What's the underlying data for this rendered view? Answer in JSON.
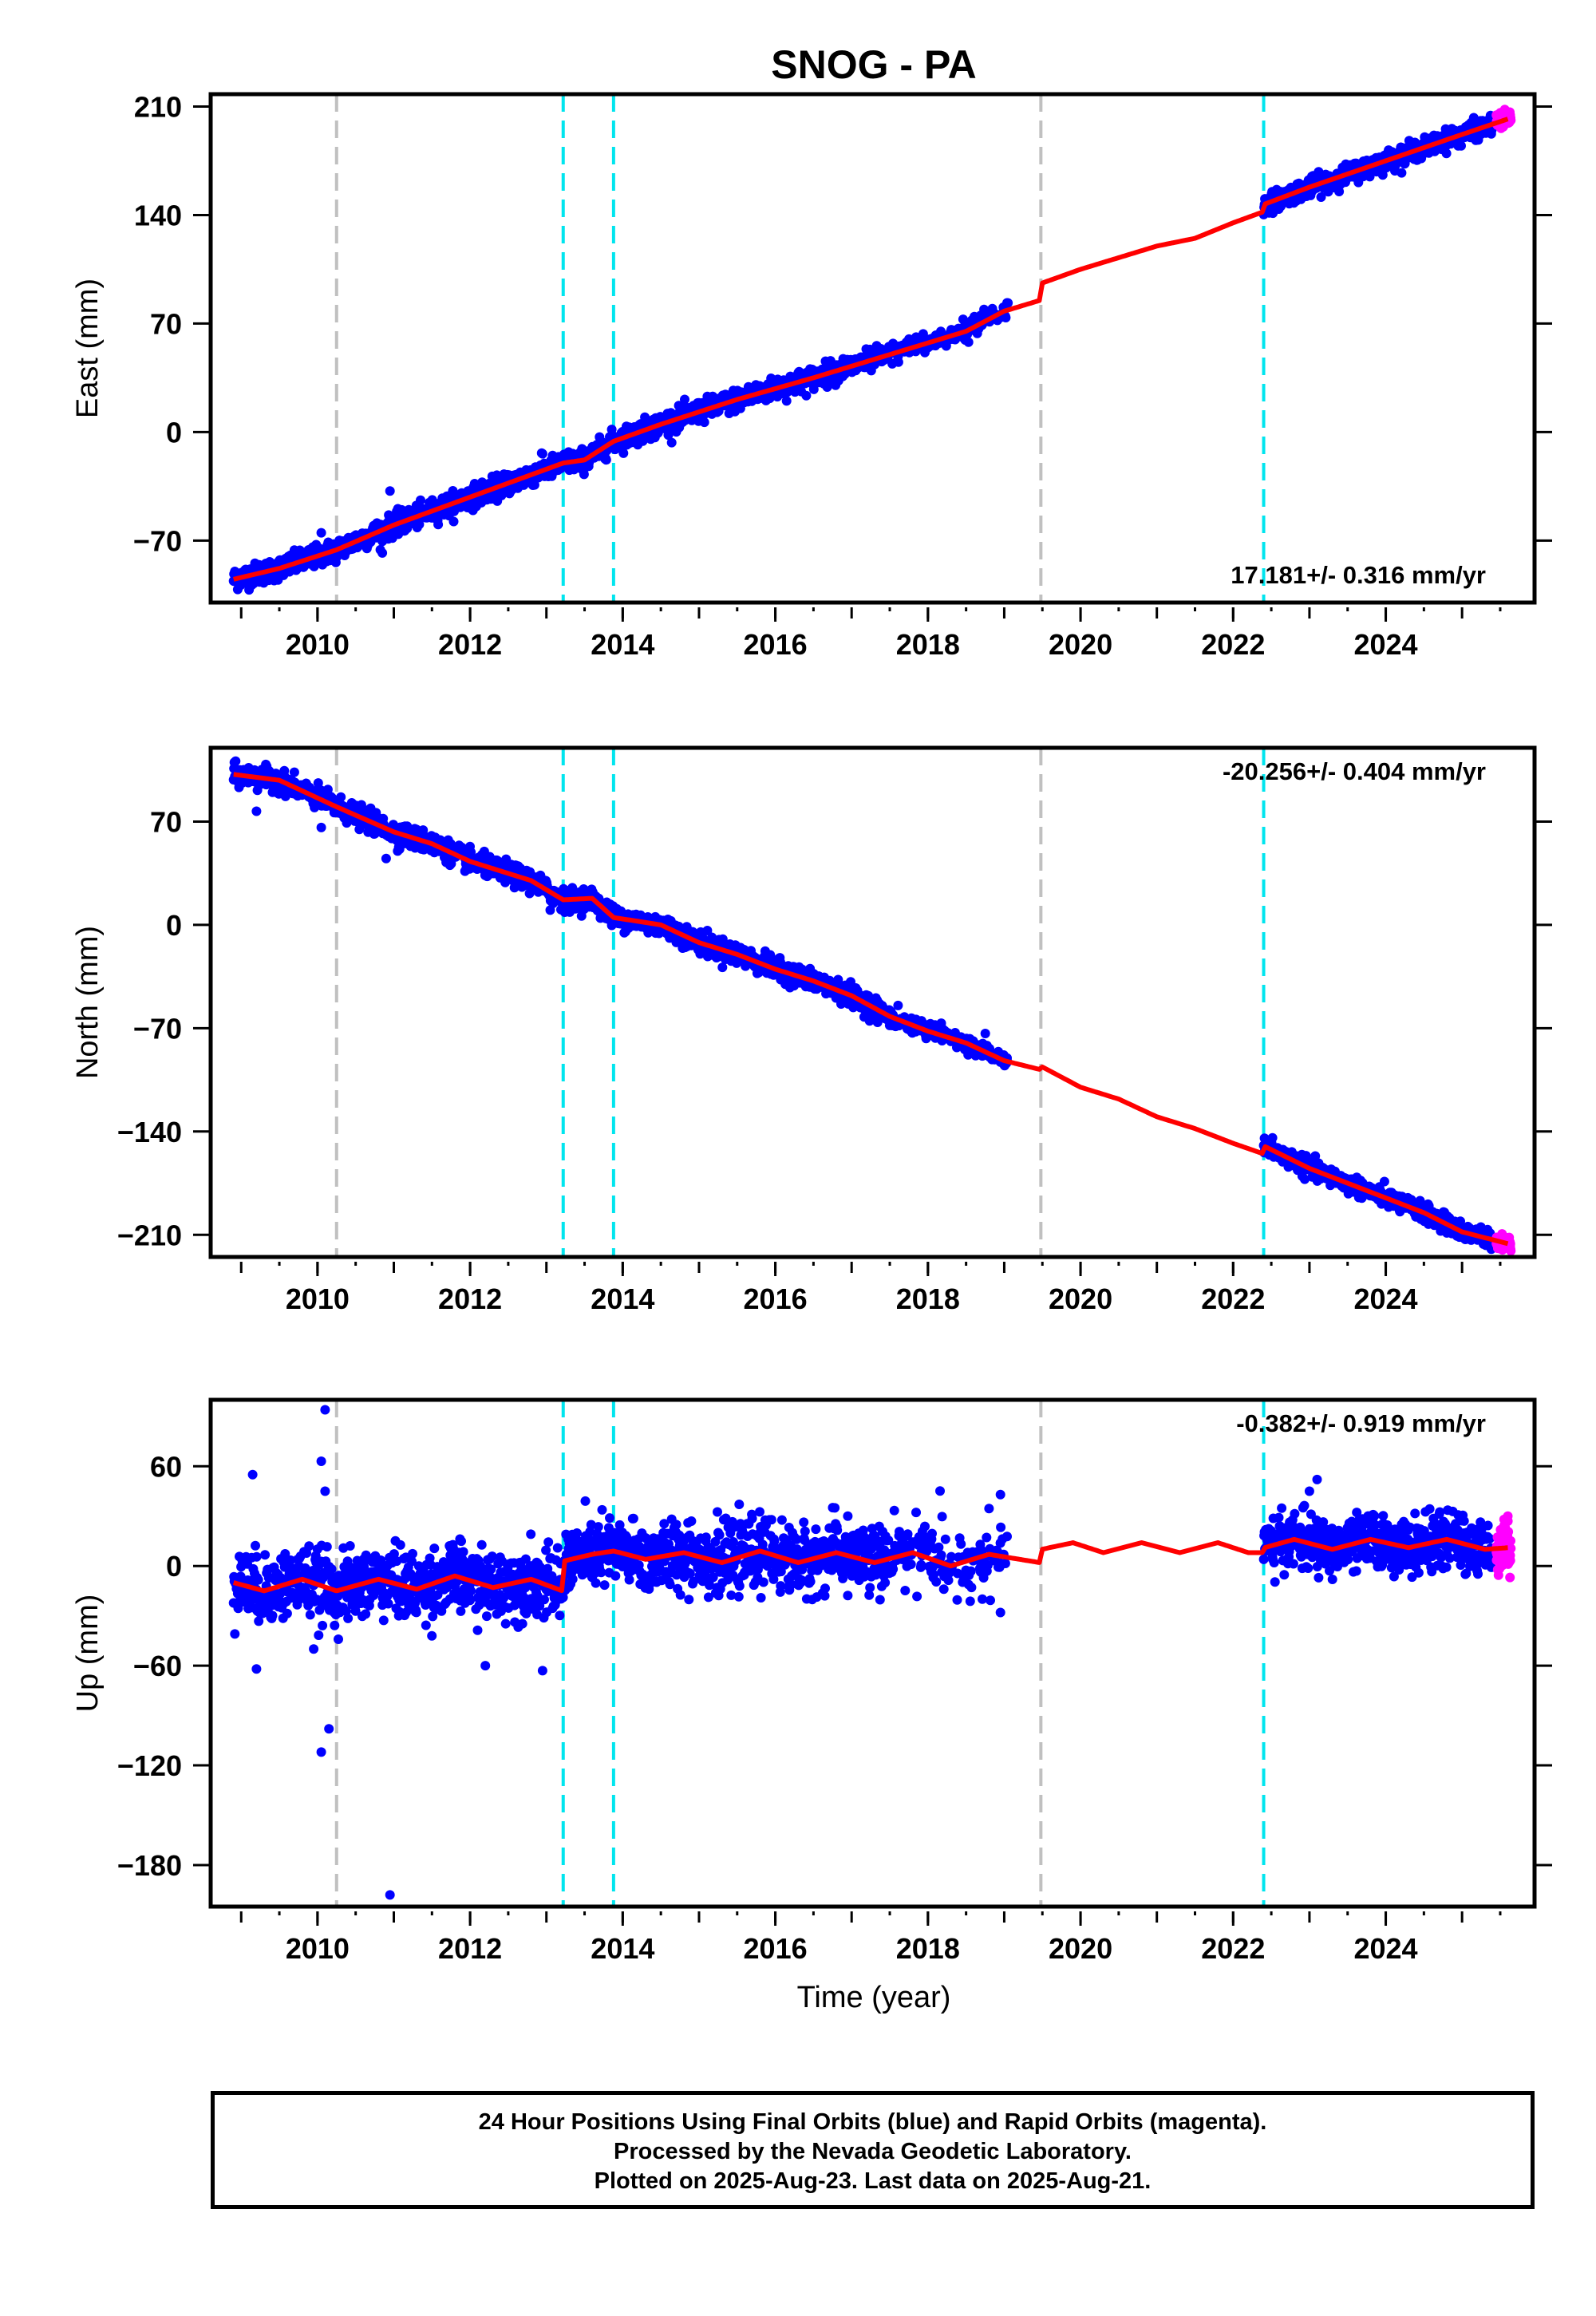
{
  "figure": {
    "title": "SNOG - PA",
    "xlabel": "Time (year)",
    "footer": [
      "24 Hour Positions Using Final Orbits (blue) and Rapid Orbits (magenta).",
      "Processed by the Nevada Geodetic Laboratory.",
      "Plotted on 2025-Aug-23. Last data on 2025-Aug-21."
    ]
  },
  "colors": {
    "final_orbits": "#0000ff",
    "rapid_orbits": "#ff00ff",
    "model": "#ff0000",
    "equipment_change": "#00e5ee",
    "other_event": "#c0c0c0"
  },
  "chart_data": [
    {
      "type": "scatter",
      "ylabel": "East (mm)",
      "xlim": [
        2008.6,
        2025.95
      ],
      "ylim": [
        -110,
        218
      ],
      "yticks": [
        -70,
        0,
        70,
        140,
        210
      ],
      "xticks": [
        2010,
        2012,
        2014,
        2016,
        2018,
        2020,
        2022,
        2024
      ],
      "grid": false,
      "rate_label": "17.181+/- 0.316 mm/yr",
      "rate_position": "bottom-right",
      "event_lines": [
        {
          "x": 2010.25,
          "kind": "other"
        },
        {
          "x": 2013.22,
          "kind": "equipment"
        },
        {
          "x": 2013.88,
          "kind": "equipment"
        },
        {
          "x": 2019.48,
          "kind": "other"
        },
        {
          "x": 2022.4,
          "kind": "equipment"
        }
      ],
      "model_line": {
        "x": [
          2008.9,
          2009.5,
          2010.25,
          2011.0,
          2012.0,
          2013.22,
          2013.5,
          2013.88,
          2014.5,
          2015.5,
          2016.5,
          2017.5,
          2018.5,
          2019.0,
          2019.47,
          2019.49,
          2020.0,
          2021.0,
          2021.5,
          2022.0,
          2022.39,
          2022.41,
          2023.0,
          2024.0,
          2025.0,
          2025.6
        ],
        "y": [
          -95,
          -88,
          -76,
          -60,
          -42,
          -20,
          -18,
          -6,
          5,
          21,
          35,
          50,
          65,
          78,
          85,
          96,
          105,
          120,
          125,
          135,
          142,
          147,
          158,
          175,
          192,
          202
        ]
      },
      "series": [
        {
          "name": "Final Orbits",
          "segments": [
            {
              "x_start": 2008.9,
              "x_end": 2019.05,
              "model_index_offset": 0,
              "noise_mm": 3.5
            },
            {
              "x_start": 2022.4,
              "x_end": 2025.4,
              "noise_mm": 3.0
            }
          ],
          "outliers": [
            {
              "x": 2010.05,
              "y": -65
            },
            {
              "x": 2010.95,
              "y": -38
            },
            {
              "x": 2010.85,
              "y": -78
            },
            {
              "x": 2012.95,
              "y": -14
            },
            {
              "x": 2015.0,
              "y": 12
            },
            {
              "x": 2018.95,
              "y": 74
            }
          ]
        },
        {
          "name": "Rapid Orbits",
          "segments": [
            {
              "x_start": 2025.45,
              "x_end": 2025.64,
              "noise_mm": 2.5
            }
          ],
          "outliers": []
        }
      ]
    },
    {
      "type": "scatter",
      "ylabel": "North (mm)",
      "xlim": [
        2008.6,
        2025.95
      ],
      "ylim": [
        -225,
        120
      ],
      "yticks": [
        -210,
        -140,
        -70,
        0,
        70
      ],
      "xticks": [
        2010,
        2012,
        2014,
        2016,
        2018,
        2020,
        2022,
        2024
      ],
      "grid": false,
      "rate_label": "-20.256+/- 0.404 mm/yr",
      "rate_position": "top-right",
      "event_lines": [
        {
          "x": 2010.25,
          "kind": "other"
        },
        {
          "x": 2013.22,
          "kind": "equipment"
        },
        {
          "x": 2013.88,
          "kind": "equipment"
        },
        {
          "x": 2019.48,
          "kind": "other"
        },
        {
          "x": 2022.4,
          "kind": "equipment"
        }
      ],
      "model_line": {
        "x": [
          2008.9,
          2009.5,
          2010.25,
          2011.0,
          2011.5,
          2012.0,
          2012.8,
          2013.22,
          2013.6,
          2013.88,
          2014.5,
          2015.0,
          2015.5,
          2016.0,
          2016.5,
          2017.0,
          2017.5,
          2018.0,
          2018.5,
          2019.0,
          2019.47,
          2019.49,
          2020.0,
          2020.5,
          2021.0,
          2021.5,
          2022.0,
          2022.39,
          2022.41,
          2023.0,
          2023.5,
          2024.0,
          2024.5,
          2025.0,
          2025.6
        ],
        "y": [
          102,
          98,
          80,
          63,
          55,
          43,
          30,
          17,
          18,
          5,
          0,
          -12,
          -20,
          -30,
          -38,
          -48,
          -62,
          -72,
          -80,
          -92,
          -98,
          -96,
          -110,
          -118,
          -130,
          -138,
          -148,
          -155,
          -150,
          -165,
          -175,
          -185,
          -195,
          -208,
          -216
        ]
      },
      "series": [
        {
          "name": "Final Orbits",
          "segments": [
            {
              "x_start": 2008.9,
              "x_end": 2019.05,
              "noise_mm": 3.5
            },
            {
              "x_start": 2022.4,
              "x_end": 2025.4,
              "noise_mm": 3.0
            }
          ],
          "outliers": [
            {
              "x": 2009.2,
              "y": 77
            },
            {
              "x": 2010.05,
              "y": 66
            },
            {
              "x": 2010.9,
              "y": 45
            },
            {
              "x": 2011.05,
              "y": 50
            },
            {
              "x": 2013.05,
              "y": 10
            },
            {
              "x": 2013.95,
              "y": 7
            }
          ]
        },
        {
          "name": "Rapid Orbits",
          "segments": [
            {
              "x_start": 2025.45,
              "x_end": 2025.64,
              "noise_mm": 2.5
            }
          ],
          "outliers": []
        }
      ]
    },
    {
      "type": "scatter",
      "ylabel": "Up (mm)",
      "xlim": [
        2008.6,
        2025.95
      ],
      "ylim": [
        -205,
        100
      ],
      "yticks": [
        -180,
        -120,
        -60,
        0,
        60
      ],
      "xticks": [
        2010,
        2012,
        2014,
        2016,
        2018,
        2020,
        2022,
        2024
      ],
      "grid": false,
      "rate_label": "-0.382+/- 0.919 mm/yr",
      "rate_position": "top-right",
      "event_lines": [
        {
          "x": 2010.25,
          "kind": "other"
        },
        {
          "x": 2013.22,
          "kind": "equipment"
        },
        {
          "x": 2013.88,
          "kind": "equipment"
        },
        {
          "x": 2019.48,
          "kind": "other"
        },
        {
          "x": 2022.4,
          "kind": "equipment"
        }
      ],
      "model_line": {
        "x": [
          2008.9,
          2009.3,
          2009.8,
          2010.25,
          2010.8,
          2011.3,
          2011.8,
          2012.3,
          2012.8,
          2013.21,
          2013.23,
          2013.6,
          2013.88,
          2014.3,
          2014.8,
          2015.3,
          2015.8,
          2016.3,
          2016.8,
          2017.3,
          2017.8,
          2018.3,
          2018.8,
          2019.47,
          2019.49,
          2019.9,
          2020.3,
          2020.8,
          2021.3,
          2021.8,
          2022.2,
          2022.39,
          2022.41,
          2022.8,
          2023.3,
          2023.8,
          2024.3,
          2024.8,
          2025.3,
          2025.6
        ],
        "y": [
          -10,
          -15,
          -8,
          -15,
          -8,
          -14,
          -6,
          -13,
          -8,
          -15,
          3,
          7,
          9,
          4,
          8,
          2,
          9,
          2,
          8,
          2,
          8,
          0,
          7,
          2,
          10,
          14,
          8,
          14,
          8,
          14,
          8,
          8,
          11,
          16,
          10,
          16,
          11,
          16,
          10,
          11
        ]
      },
      "series": [
        {
          "name": "Final Orbits",
          "segments": [
            {
              "x_start": 2008.9,
              "x_end": 2019.05,
              "noise_mm": 10
            },
            {
              "x_start": 2022.4,
              "x_end": 2025.4,
              "noise_mm": 8
            }
          ],
          "outliers": [
            {
              "x": 2009.15,
              "y": 55
            },
            {
              "x": 2009.2,
              "y": -62
            },
            {
              "x": 2010.1,
              "y": 94
            },
            {
              "x": 2010.05,
              "y": 63
            },
            {
              "x": 2010.1,
              "y": 45
            },
            {
              "x": 2010.05,
              "y": -112
            },
            {
              "x": 2010.15,
              "y": -98
            },
            {
              "x": 2009.95,
              "y": -50
            },
            {
              "x": 2010.95,
              "y": -198
            },
            {
              "x": 2012.2,
              "y": -60
            },
            {
              "x": 2012.95,
              "y": -63
            },
            {
              "x": 2014.9,
              "y": 27
            },
            {
              "x": 2016.95,
              "y": 30
            },
            {
              "x": 2018.95,
              "y": 43
            },
            {
              "x": 2018.95,
              "y": -28
            },
            {
              "x": 2023.1,
              "y": 52
            },
            {
              "x": 2023.0,
              "y": 45
            }
          ]
        },
        {
          "name": "Rapid Orbits",
          "segments": [
            {
              "x_start": 2025.45,
              "x_end": 2025.64,
              "noise_mm": 7
            }
          ],
          "outliers": [
            {
              "x": 2025.6,
              "y": 30
            },
            {
              "x": 2025.55,
              "y": 28
            }
          ]
        }
      ]
    }
  ]
}
